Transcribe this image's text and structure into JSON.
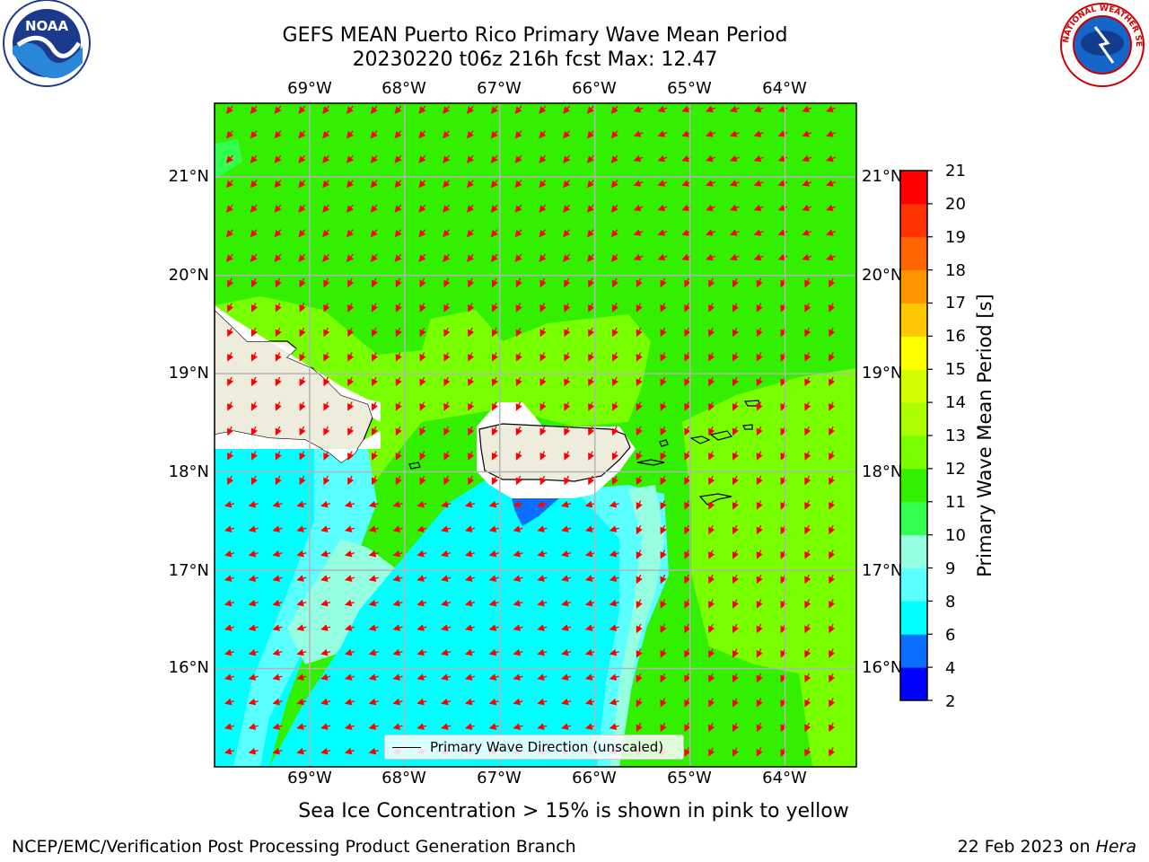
{
  "title": {
    "line1": "GEFS MEAN Puerto Rico Primary Wave Mean Period",
    "line2": "20230220 t06z 216h fcst   Max: 12.47"
  },
  "logos": {
    "left": {
      "name": "noaa-logo",
      "text": "NOAA"
    },
    "right": {
      "name": "nws-logo",
      "text": "NATIONAL WEATHER SERVICE"
    }
  },
  "axes": {
    "lon_ticks": [
      "69°W",
      "68°W",
      "67°W",
      "66°W",
      "65°W",
      "64°W"
    ],
    "lat_ticks": [
      "21°N",
      "20°N",
      "19°N",
      "18°N",
      "17°N",
      "16°N"
    ],
    "lon_values": [
      -69,
      -68,
      -67,
      -66,
      -65,
      -64
    ],
    "lat_values": [
      21,
      20,
      19,
      18,
      17,
      16
    ],
    "lon_range": [
      -70.0,
      -63.25
    ],
    "lat_range": [
      15.0,
      21.75
    ]
  },
  "legend": {
    "label": "Primary Wave Direction (unscaled)"
  },
  "colorbar": {
    "label": "Primary Wave Mean Period [s]",
    "ticks": [
      "21",
      "20",
      "19",
      "18",
      "17",
      "16",
      "15",
      "14",
      "13",
      "12",
      "11",
      "10",
      "9",
      "8",
      "6",
      "4",
      "2"
    ],
    "levels": [
      2,
      4,
      6,
      8,
      9,
      10,
      11,
      12,
      13,
      14,
      15,
      16,
      17,
      18,
      19,
      20,
      21
    ],
    "colors": [
      "#0000ff",
      "#0a6eff",
      "#00ffff",
      "#5affff",
      "#96ffe1",
      "#32ff50",
      "#32f000",
      "#78ff00",
      "#aaff00",
      "#d2ff00",
      "#ffff00",
      "#ffc800",
      "#ff9600",
      "#ff6400",
      "#ff3200",
      "#ff0000"
    ]
  },
  "notes": {
    "sea_ice": "Sea Ice Concentration > 15% is shown in pink to yellow"
  },
  "footer": {
    "left": "NCEP/EMC/Verification Post Processing Product Generation Branch",
    "right_prefix": "22 Feb 2023 on ",
    "right_host": "Hera"
  },
  "map": {
    "field_colors": {
      "green": "#32f000",
      "light_green": "#78ff00",
      "cyan": "#00ffff",
      "light_cyan": "#5affff",
      "aqua": "#96ffe1",
      "blue": "#0a6eff",
      "land": "#eeecdd",
      "arrow": "#ff0000"
    }
  }
}
